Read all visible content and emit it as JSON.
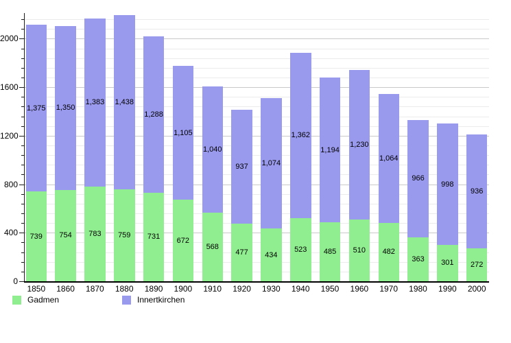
{
  "chart_data": {
    "type": "bar",
    "stacked": true,
    "title": "",
    "xlabel": "",
    "ylabel": "",
    "categories": [
      "1850",
      "1860",
      "1870",
      "1880",
      "1890",
      "1900",
      "1910",
      "1920",
      "1930",
      "1940",
      "1950",
      "1960",
      "1970",
      "1980",
      "1990",
      "2000"
    ],
    "series": [
      {
        "name": "Gadmen",
        "color": "#90ee90",
        "values": [
          739,
          754,
          783,
          759,
          731,
          672,
          568,
          477,
          434,
          523,
          485,
          510,
          482,
          363,
          301,
          272
        ],
        "labels": [
          "739",
          "754",
          "783",
          "759",
          "731",
          "672",
          "568",
          "477",
          "434",
          "523",
          "485",
          "510",
          "482",
          "363",
          "301",
          "272"
        ]
      },
      {
        "name": "Innertkirchen",
        "color": "#9999ee",
        "values": [
          1375,
          1350,
          1383,
          1438,
          1288,
          1105,
          1040,
          937,
          1074,
          1362,
          1194,
          1230,
          1064,
          966,
          998,
          936
        ],
        "labels": [
          "1,375",
          "1,350",
          "1,383",
          "1,438",
          "1,288",
          "1,105",
          "1,040",
          "937",
          "1,074",
          "1,362",
          "1,194",
          "1,230",
          "1,064",
          "966",
          "998",
          "936"
        ]
      }
    ],
    "ylim": [
      0,
      2200
    ],
    "ytick_minor_step": 80,
    "yticks": [
      {
        "v": 0,
        "label": "0"
      },
      {
        "v": 400,
        "label": "400"
      },
      {
        "v": 800,
        "label": "800"
      },
      {
        "v": 1200,
        "label": "1200"
      },
      {
        "v": 1600,
        "label": "1600"
      },
      {
        "v": 2000,
        "label": "2000"
      }
    ],
    "grid": true,
    "legend_position": "bottom",
    "bar_value_labels": true
  },
  "legend": {
    "items": [
      {
        "label": "Gadmen",
        "color": "#90ee90"
      },
      {
        "label": "Innertkirchen",
        "color": "#9999ee"
      }
    ]
  }
}
